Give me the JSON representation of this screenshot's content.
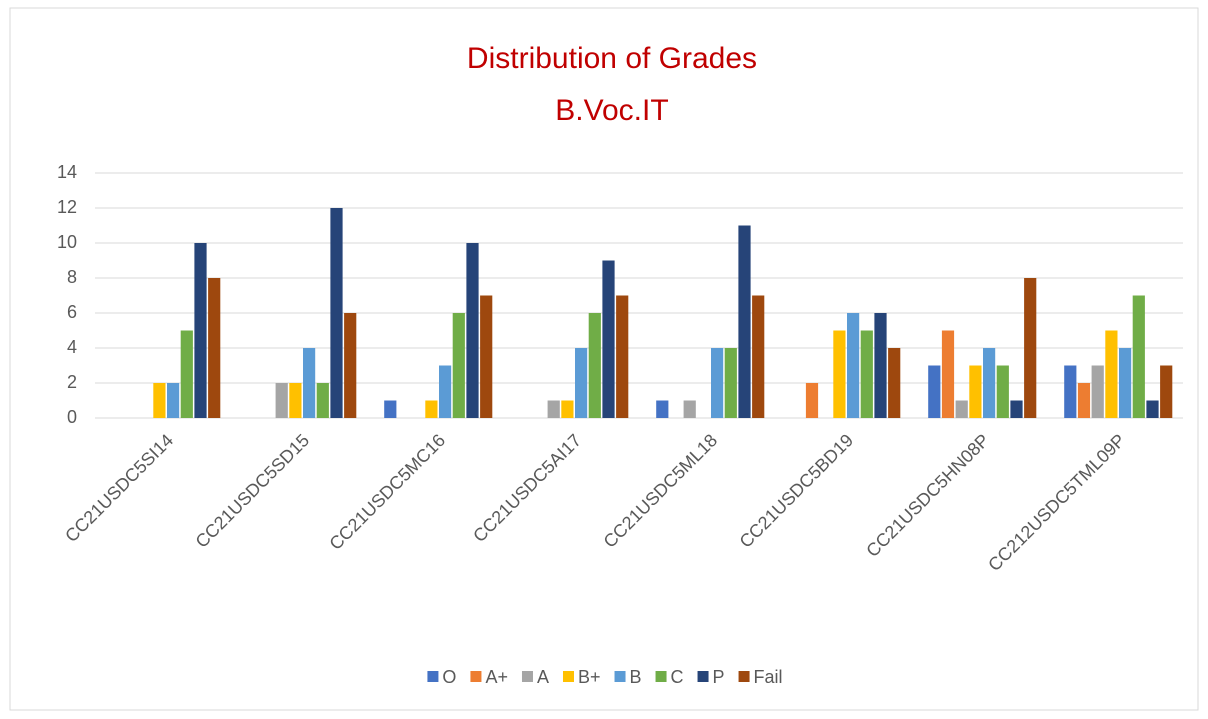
{
  "chart_data": {
    "type": "bar",
    "title": "Distribution of Grades",
    "subtitle": "B.Voc.IT",
    "categories": [
      "CC21USDC5SI14",
      "CC21USDC5SD15",
      "CC21USDC5MC16",
      "CC21USDC5AI17",
      "CC21USDC5ML18",
      "CC21USDC5BD19",
      "CC21USDC5HN08P",
      "CC212USDC5TML09P"
    ],
    "series": [
      {
        "name": "O",
        "color": "#4472c4",
        "values": [
          0,
          0,
          1,
          0,
          1,
          0,
          3,
          3
        ]
      },
      {
        "name": "A+",
        "color": "#ed7d31",
        "values": [
          0,
          0,
          0,
          0,
          0,
          2,
          5,
          2
        ]
      },
      {
        "name": "A",
        "color": "#a5a5a5",
        "values": [
          0,
          2,
          0,
          1,
          1,
          0,
          1,
          3
        ]
      },
      {
        "name": "B+",
        "color": "#ffc000",
        "values": [
          2,
          2,
          1,
          1,
          0,
          5,
          3,
          5
        ]
      },
      {
        "name": "B",
        "color": "#5b9bd5",
        "values": [
          2,
          4,
          3,
          4,
          4,
          6,
          4,
          4
        ]
      },
      {
        "name": "C",
        "color": "#70ad47",
        "values": [
          5,
          2,
          6,
          6,
          4,
          5,
          3,
          7
        ]
      },
      {
        "name": "P",
        "color": "#264478",
        "values": [
          10,
          12,
          10,
          9,
          11,
          6,
          1,
          1
        ]
      },
      {
        "name": "Fail",
        "color": "#9e480e",
        "values": [
          8,
          6,
          7,
          7,
          7,
          4,
          8,
          3
        ]
      }
    ],
    "ylim": [
      0,
      14
    ],
    "yticks": [
      0,
      2,
      4,
      6,
      8,
      10,
      12,
      14
    ],
    "grid": true,
    "legend": "bottom"
  }
}
